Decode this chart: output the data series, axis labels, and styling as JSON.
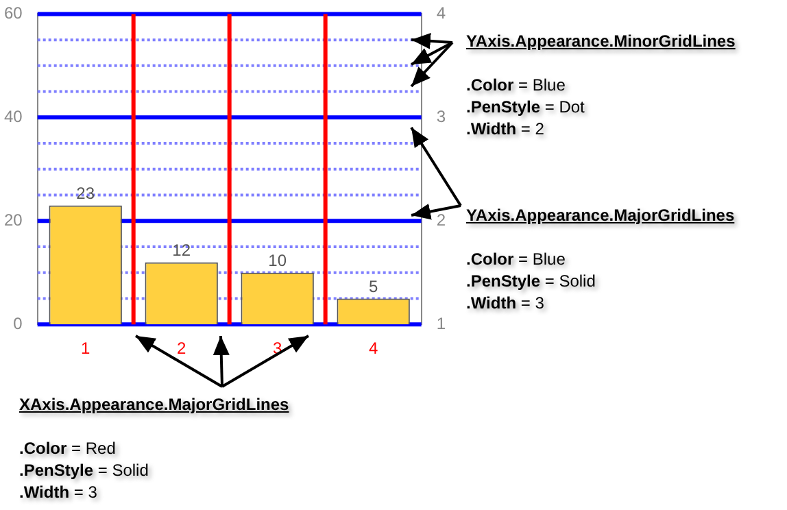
{
  "chart_data": {
    "type": "bar",
    "categories": [
      "1",
      "2",
      "3",
      "4"
    ],
    "values": [
      23,
      12,
      10,
      5
    ],
    "color": "#ffd040",
    "data_labels": true,
    "ylim": [
      0,
      60
    ],
    "yticks": [
      0,
      {
        "value": 5,
        "label": null
      },
      {
        "value": 10,
        "label": null
      },
      {
        "value": 15,
        "label": null
      },
      20,
      {
        "value": 25,
        "label": null
      },
      {
        "value": 30,
        "label": null
      },
      {
        "value": 35,
        "label": null
      },
      40,
      {
        "value": 45,
        "label": null
      },
      {
        "value": 50,
        "label": null
      },
      {
        "value": 55,
        "label": null
      },
      60
    ],
    "y2lim": [
      1,
      4
    ],
    "y2ticks": [
      1,
      2,
      3,
      4
    ],
    "grid": true,
    "annotations": [
      "YAxis.Appearance.MinorGridLines",
      ".Color = Blue",
      ".PenStyle = Dot",
      ".Width = 2",
      "YAxis.Appearance.MajorGridLines",
      ".Color = Blue",
      ".PenStyle = Solid",
      ".Width = 3",
      "XAxis.Appearance.MajorGridLines",
      ".Color = Red",
      ".PenStyle = Solid",
      ".Width = 3"
    ]
  }
}
